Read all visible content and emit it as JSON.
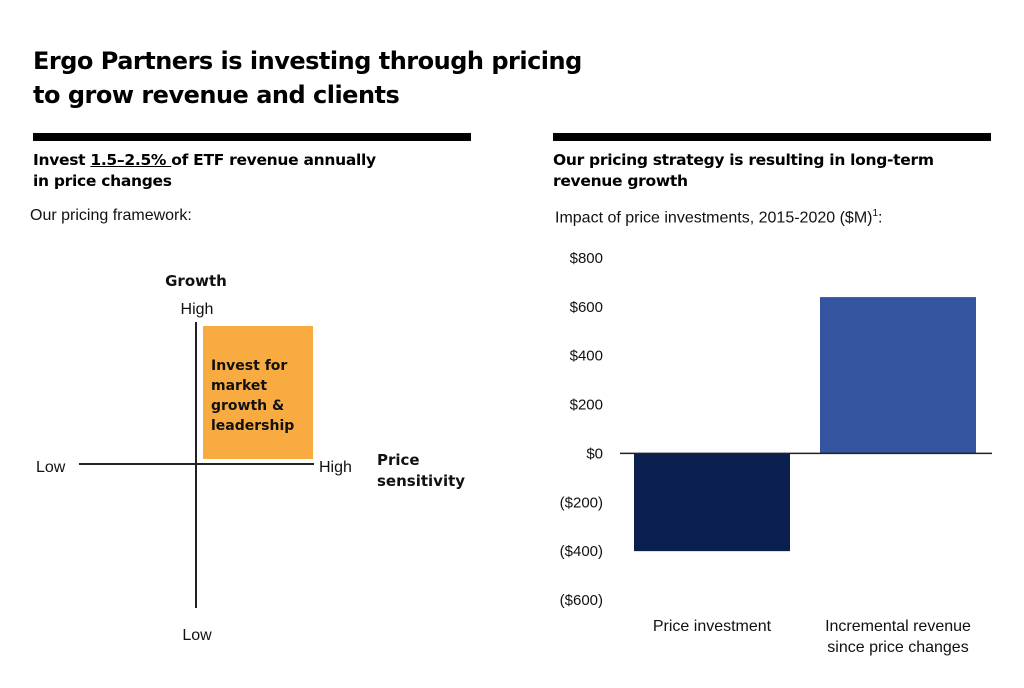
{
  "title": {
    "line1": "Ergo Partners is investing through pricing",
    "line2": "to grow revenue and clients"
  },
  "left_panel": {
    "subhead_prefix": "Invest ",
    "subhead_highlight": "1.5–2.5% ",
    "subhead_suffix": "of ETF revenue annually",
    "subhead_line2": "in price changes",
    "caption": "Our pricing framework:",
    "framework": {
      "y_axis_title": "Growth",
      "y_high": "High",
      "y_low": "Low",
      "x_axis_title_line1": "Price",
      "x_axis_title_line2": "sensitivity",
      "x_low": "Low",
      "x_high": "High",
      "quadrant_lines": [
        "Invest for",
        "market",
        "growth &",
        "leadership"
      ],
      "quadrant_color": "#F7AB40"
    }
  },
  "right_panel": {
    "subhead_line1": "Our pricing strategy is resulting in long-term",
    "subhead_line2": "revenue growth",
    "caption": "Impact of price investments, 2015-2020 ($M)",
    "caption_footnote": "1",
    "caption_suffix": ":"
  },
  "chart_data": {
    "type": "bar",
    "title": "Impact of price investments, 2015-2020 ($M)",
    "xlabel": "",
    "ylabel": "",
    "categories": [
      "Price investment",
      "Incremental revenue since price changes"
    ],
    "category_lines": [
      [
        "Price investment"
      ],
      [
        "Incremental revenue",
        "since price changes"
      ]
    ],
    "values": [
      -400,
      640
    ],
    "colors": [
      "#0A1F4E",
      "#3555A0"
    ],
    "ylim": [
      -600,
      800
    ],
    "yticks": [
      800,
      600,
      400,
      200,
      0,
      -200,
      -400,
      -600
    ],
    "ytick_labels": [
      "$800",
      "$600",
      "$400",
      "$200",
      "$0",
      "($200)",
      "($400)",
      "($600)"
    ],
    "grid": false,
    "legend": "none"
  }
}
